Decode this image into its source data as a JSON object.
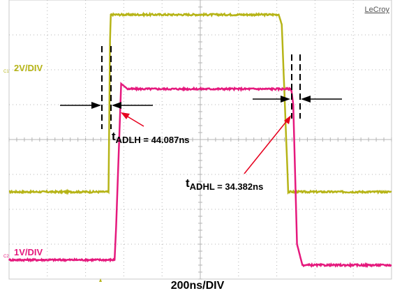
{
  "brand": "LeCroy",
  "channels": [
    {
      "tag": "C1",
      "scale_label": "2V/DIV",
      "color": "#b6b417"
    },
    {
      "tag": "C2",
      "scale_label": "1V/DIV",
      "color": "#e5197d"
    }
  ],
  "timebase_label": "200ns/DIV",
  "measurements": {
    "rise": {
      "prefix": "t",
      "sub": "ADLH",
      "value_text": " = 44.087ns"
    },
    "fall": {
      "prefix": "t",
      "sub": "ADHL",
      "value_text": " = 34.382ns"
    }
  },
  "colors": {
    "grid": "#b4b4b4",
    "annotation_arrow": "#e6001e",
    "marker": "#000000"
  },
  "chart_data": {
    "type": "line",
    "xlabel": "200ns/DIV",
    "grid": true,
    "series": [
      {
        "name": "C1",
        "scale": "2V/DIV",
        "x_div": [
          0,
          2.6,
          2.64,
          2.66,
          7.05,
          7.13,
          7.3,
          10
        ],
        "y_div": [
          -1.5,
          -1.5,
          2.85,
          3.58,
          3.58,
          3.3,
          -1.5,
          -1.5
        ]
      },
      {
        "name": "C2",
        "scale": "1V/DIV",
        "x_div": [
          0,
          2.76,
          2.8,
          2.93,
          3.1,
          7.38,
          7.43,
          7.53,
          7.67,
          10
        ],
        "y_div": [
          -3.45,
          -3.45,
          -2.5,
          1.6,
          1.45,
          1.45,
          1.0,
          -3.0,
          -3.6,
          -3.6
        ]
      }
    ]
  }
}
